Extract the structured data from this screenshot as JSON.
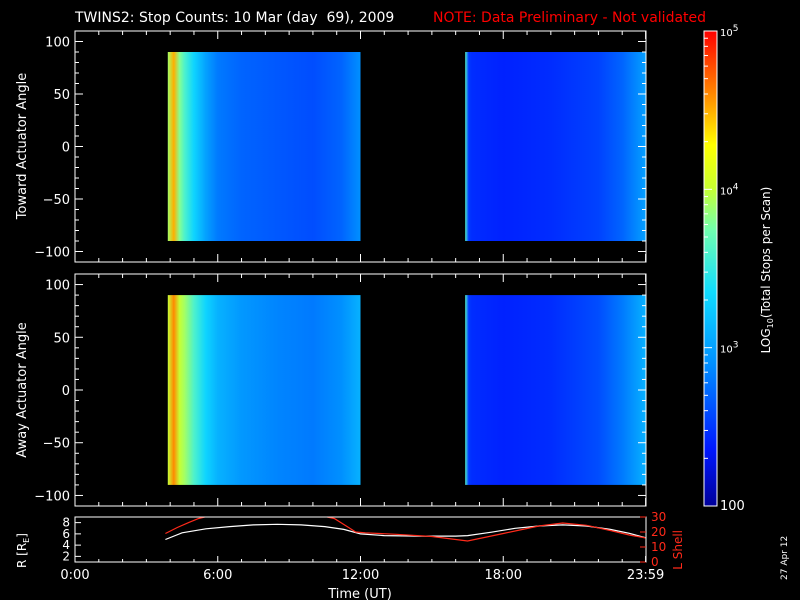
{
  "title": {
    "main": "TWINS2: Stop Counts: 10 Mar (day  69), 2009",
    "note": "NOTE: Data Preliminary - Not validated",
    "note_color": "#ff0000"
  },
  "date_stamp": "27 Apr 12",
  "chart_data": [
    {
      "type": "heatmap",
      "panel": "toward",
      "ylabel": "Toward Actuator Angle",
      "ylim": [
        -110,
        110
      ],
      "yticks": [
        "100",
        "50",
        "0",
        "−50",
        "−100"
      ],
      "ytick_values": [
        100,
        50,
        0,
        -50,
        -100
      ],
      "xlim": [
        0,
        24
      ],
      "data_intervals_hours": [
        [
          3.9,
          12.0
        ],
        [
          16.4,
          24.0
        ]
      ],
      "angle_range": [
        -90,
        90
      ],
      "log10_counts_profile": {
        "hours": [
          3.9,
          4.15,
          4.4,
          4.6,
          5.0,
          5.5,
          6.0,
          7.0,
          8.5,
          10.0,
          11.2,
          12.0
        ],
        "values": [
          3.9,
          4.5,
          3.8,
          3.6,
          3.3,
          3.0,
          2.8,
          2.7,
          2.65,
          2.6,
          2.7,
          2.9
        ]
      },
      "log10_counts_profile_2": {
        "hours": [
          16.4,
          16.55,
          16.7,
          18.0,
          20.0,
          22.0,
          23.0,
          24.0
        ],
        "values": [
          3.6,
          2.5,
          2.45,
          2.4,
          2.45,
          2.55,
          2.7,
          3.0
        ]
      }
    },
    {
      "type": "heatmap",
      "panel": "away",
      "ylabel": "Away Actuator Angle",
      "ylim": [
        -110,
        110
      ],
      "yticks": [
        "100",
        "50",
        "0",
        "−50",
        "−100"
      ],
      "ytick_values": [
        100,
        50,
        0,
        -50,
        -100
      ],
      "xlim": [
        0,
        24
      ],
      "data_intervals_hours": [
        [
          3.9,
          12.0
        ],
        [
          16.4,
          24.0
        ]
      ],
      "angle_range": [
        -90,
        90
      ],
      "log10_counts_profile": {
        "hours": [
          3.9,
          4.15,
          4.4,
          4.6,
          5.0,
          5.5,
          6.0,
          7.0,
          8.5,
          10.0,
          11.2,
          12.0
        ],
        "values": [
          4.0,
          4.6,
          4.0,
          3.9,
          3.6,
          3.3,
          3.1,
          2.95,
          2.85,
          2.8,
          2.9,
          3.1
        ]
      },
      "log10_counts_profile_2": {
        "hours": [
          16.4,
          16.55,
          16.7,
          18.0,
          20.0,
          22.0,
          23.0,
          24.0
        ],
        "values": [
          3.6,
          2.5,
          2.45,
          2.4,
          2.45,
          2.6,
          2.8,
          3.1
        ]
      }
    },
    {
      "type": "line",
      "panel": "orbit",
      "ylabel_left": "R [R",
      "ylabel_left_sub": "E",
      "ylabel_left_close": "]",
      "ylabel_right": "L Shell",
      "left_ylim": [
        1,
        9
      ],
      "left_yticks": [
        "8",
        "6",
        "4",
        "2"
      ],
      "left_ytick_values": [
        8,
        6,
        4,
        2
      ],
      "right_ylim": [
        0,
        30
      ],
      "right_yticks": [
        "30",
        "20",
        "10",
        "0"
      ],
      "right_ytick_values": [
        30,
        20,
        10,
        0
      ],
      "right_color": "#ff2a1a",
      "xlabel": "Time (UT)",
      "xlim": [
        0,
        24
      ],
      "xticks": [
        "0:00",
        "6:00",
        "12:00",
        "18:00",
        "23:59"
      ],
      "xtick_values": [
        0,
        6,
        12,
        18,
        23.983
      ],
      "series": [
        {
          "axis": "left",
          "color": "#ffffff",
          "x": [
            3.8,
            4.5,
            5.5,
            6.5,
            7.5,
            8.5,
            9.5,
            10.5,
            11.3,
            12.0,
            13.0,
            14.5,
            16.0,
            16.5,
            17.5,
            18.5,
            19.5,
            20.5,
            21.5,
            22.5,
            23.3,
            24.0
          ],
          "y": [
            5.0,
            6.2,
            6.9,
            7.3,
            7.6,
            7.7,
            7.6,
            7.3,
            6.8,
            6.0,
            5.7,
            5.6,
            5.6,
            5.7,
            6.3,
            7.0,
            7.4,
            7.6,
            7.4,
            6.8,
            6.1,
            5.3
          ]
        },
        {
          "axis": "right",
          "color": "#ff2a1a",
          "x": [
            3.8,
            4.3,
            4.8,
            5.2,
            5.45
          ],
          "y": [
            19,
            23,
            26.5,
            29,
            31
          ]
        },
        {
          "axis": "right",
          "color": "#ff2a1a",
          "x": [
            10.6,
            10.9,
            11.2,
            11.5,
            11.8,
            12.2,
            13.5,
            15.0,
            16.5,
            18.0,
            19.5,
            20.5,
            21.5,
            22.5,
            23.3,
            24.0
          ],
          "y": [
            31,
            29,
            26,
            23,
            20,
            19.5,
            18.5,
            17,
            14,
            19,
            24,
            26,
            24.5,
            21,
            18,
            16
          ]
        }
      ]
    },
    {
      "type": "heatmap",
      "panel": "colorbar",
      "ylabel": "LOG",
      "ylabel_sub": "10",
      "ylabel_rest": "(Total Stops per Scan)",
      "range_log10": [
        2.0,
        5.0
      ],
      "tick_label_100": "100",
      "ticks": [
        {
          "base": "10",
          "exp": "5",
          "log10": 5
        },
        {
          "base": "10",
          "exp": "4",
          "log10": 4
        },
        {
          "base": "10",
          "exp": "3",
          "log10": 3
        }
      ]
    }
  ]
}
